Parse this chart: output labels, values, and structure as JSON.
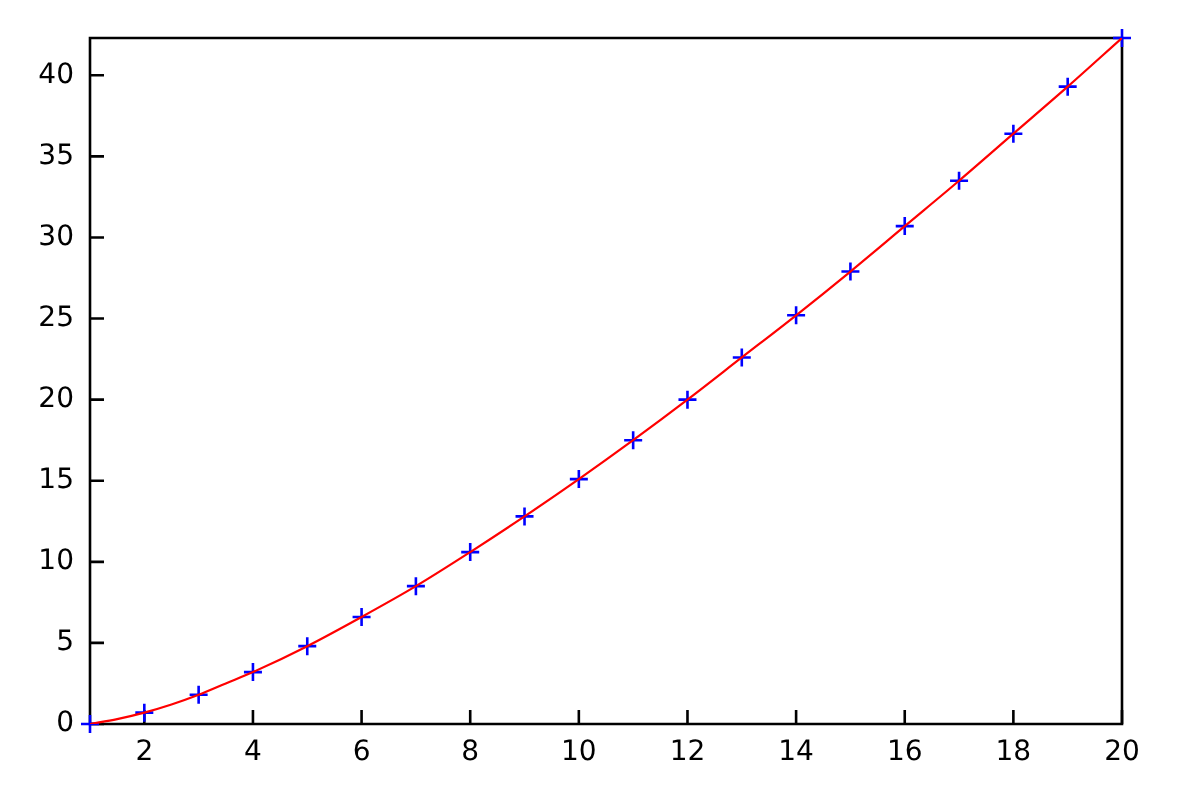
{
  "chart_data": {
    "type": "scatter",
    "x": [
      1,
      2,
      3,
      4,
      5,
      6,
      7,
      8,
      9,
      10,
      11,
      12,
      13,
      14,
      15,
      16,
      17,
      18,
      19,
      20
    ],
    "series": [
      {
        "type": "scatter",
        "color": "#0000ff",
        "marker": "cross",
        "values": [
          0,
          0.7,
          1.8,
          3.2,
          4.8,
          6.6,
          8.5,
          10.6,
          12.8,
          15.1,
          17.5,
          20.0,
          22.6,
          25.2,
          27.9,
          30.7,
          33.5,
          36.4,
          39.3,
          42.3
        ]
      },
      {
        "type": "line",
        "color": "#ff0000",
        "marker": "none",
        "x": [
          1,
          1.5,
          2,
          2.5,
          3,
          3.5,
          4,
          5,
          6,
          7,
          8,
          9,
          10,
          11,
          12,
          13,
          14,
          15,
          16,
          17,
          18,
          19,
          20
        ],
        "values": [
          0,
          0.3,
          0.7,
          1.2,
          1.8,
          2.5,
          3.2,
          4.8,
          6.6,
          8.5,
          10.6,
          12.8,
          15.1,
          17.5,
          20.0,
          22.6,
          25.2,
          27.9,
          30.7,
          33.5,
          36.4,
          39.3,
          42.3
        ]
      }
    ],
    "xlim": [
      1,
      20
    ],
    "xticks": [
      2,
      4,
      6,
      8,
      10,
      12,
      14,
      16,
      18,
      20
    ],
    "ylim": [
      0,
      42.3
    ],
    "yticks": [
      0,
      5,
      10,
      15,
      20,
      25,
      30,
      35,
      40
    ]
  }
}
